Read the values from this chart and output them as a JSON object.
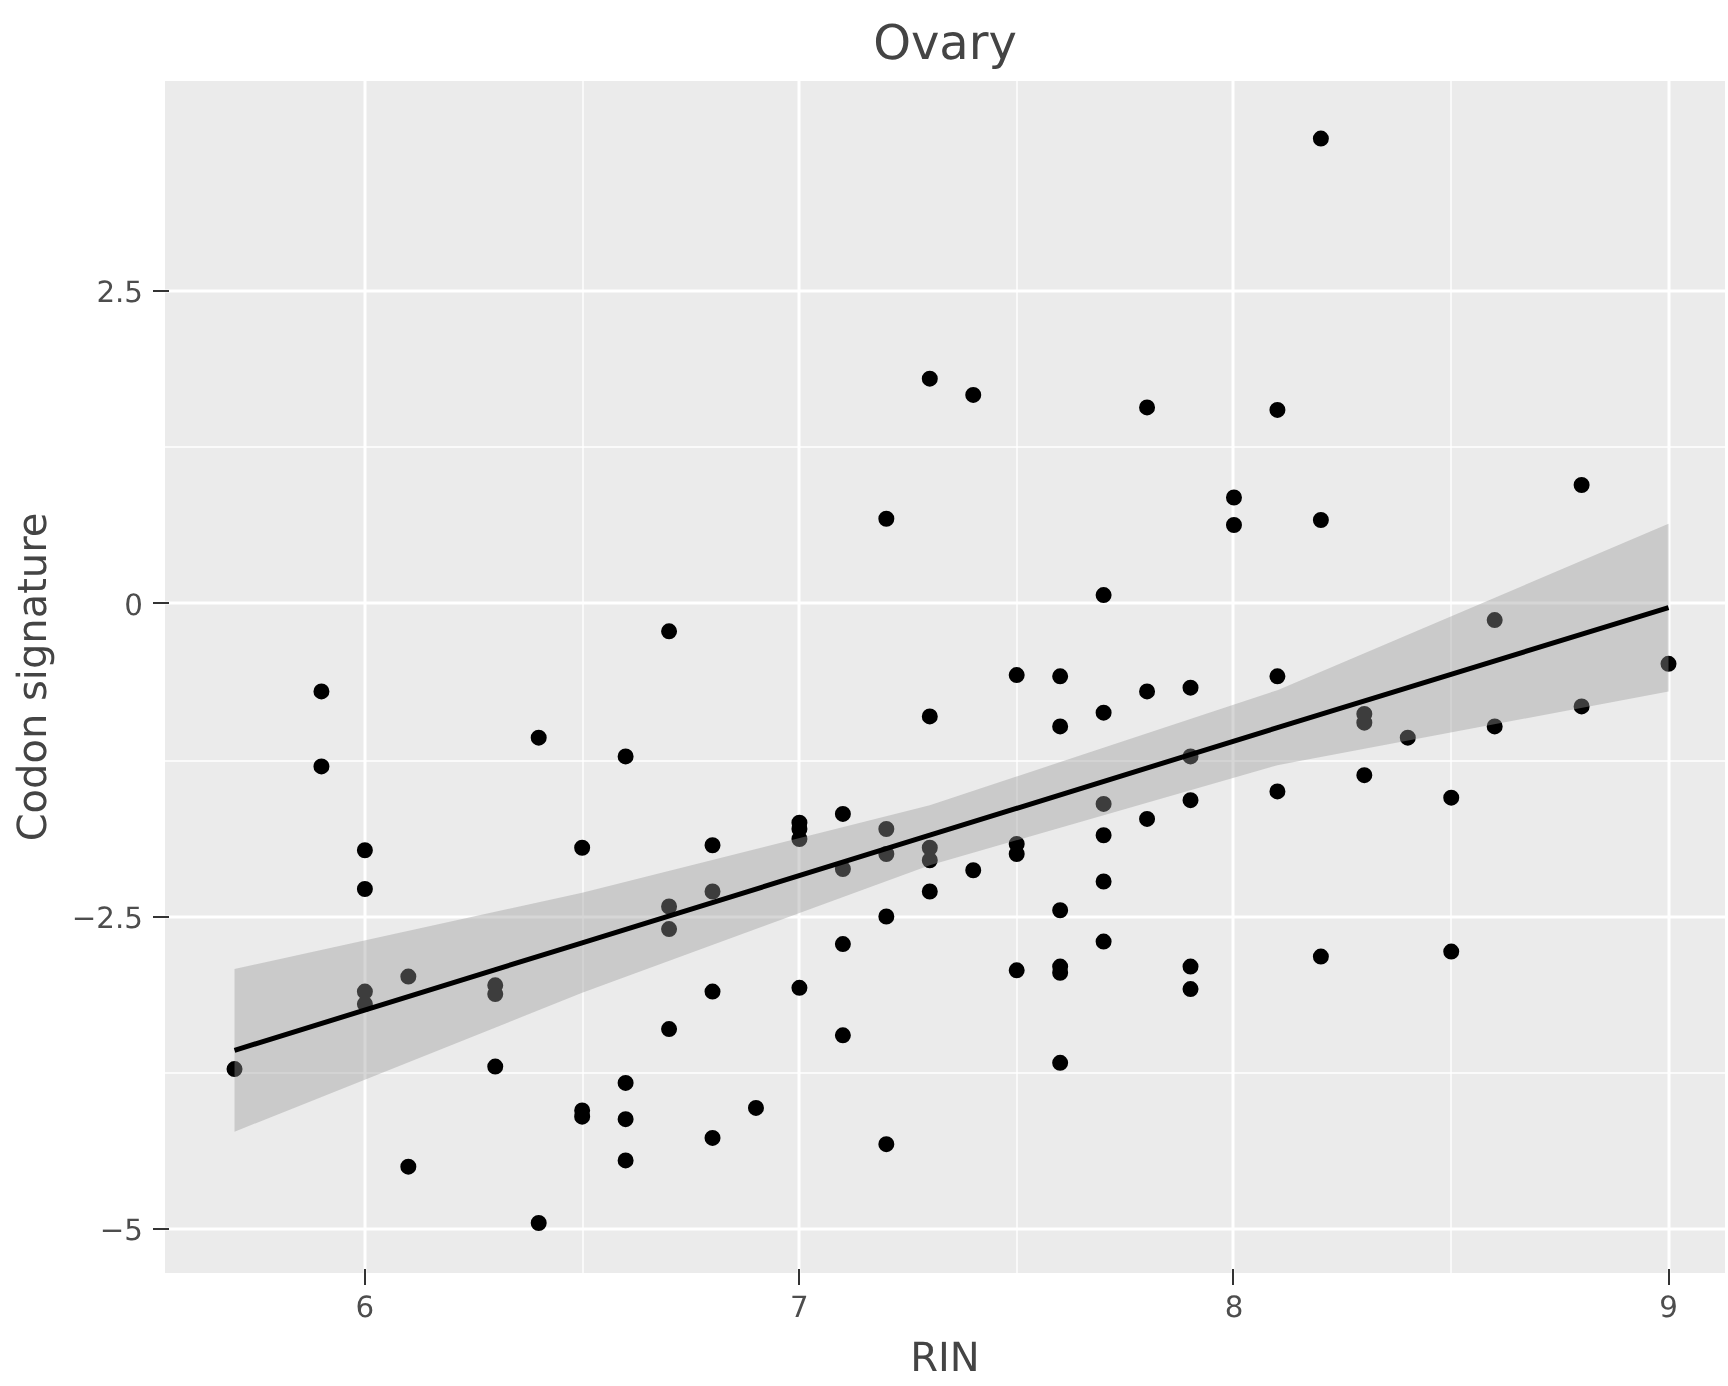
{
  "chart_data": {
    "type": "scatter",
    "title": "Ovary",
    "xlabel": "RIN",
    "ylabel": "Codon signature",
    "xlim": [
      5.54,
      9.13
    ],
    "ylim": [
      -5.35,
      4.18
    ],
    "xticks": [
      6,
      7,
      8,
      9
    ],
    "yticks": [
      {
        "value": -5,
        "label": "−5"
      },
      {
        "value": -2.5,
        "label": "−2.5"
      },
      0,
      2.5
    ],
    "grid": true,
    "series": [
      {
        "color": "#000000",
        "marker": "circle",
        "x": [
          5.7,
          5.9,
          5.9,
          6.0,
          6.0,
          6.0,
          6.0,
          6.1,
          6.1,
          6.3,
          6.3,
          6.3,
          6.4,
          6.4,
          6.5,
          6.5,
          6.5,
          6.6,
          6.6,
          6.6,
          6.6,
          6.7,
          6.7,
          6.7,
          6.7,
          6.8,
          6.8,
          6.8,
          6.8,
          6.9,
          7.0,
          7.0,
          7.0,
          7.0,
          7.1,
          7.1,
          7.1,
          7.1,
          7.2,
          7.2,
          7.2,
          7.2,
          7.2,
          7.3,
          7.3,
          7.3,
          7.3,
          7.3,
          7.4,
          7.4,
          7.5,
          7.5,
          7.5,
          7.5,
          7.6,
          7.6,
          7.6,
          7.6,
          7.6,
          7.6,
          7.7,
          7.7,
          7.7,
          7.7,
          7.7,
          7.7,
          7.8,
          7.8,
          7.8,
          7.9,
          7.9,
          7.9,
          7.9,
          7.9,
          8.0,
          8.0,
          8.1,
          8.1,
          8.1,
          8.2,
          8.2,
          8.2,
          8.3,
          8.3,
          8.3,
          8.4,
          8.5,
          8.5,
          8.6,
          8.6,
          8.8,
          8.8,
          9.0
        ],
        "values": [
          -3.72,
          -0.7,
          -1.3,
          -1.97,
          -2.28,
          -3.1,
          -3.2,
          -2.98,
          -4.5,
          -3.05,
          -3.12,
          -3.7,
          -1.07,
          -4.95,
          -1.95,
          -4.05,
          -4.1,
          -1.22,
          -3.83,
          -4.12,
          -4.45,
          -0.22,
          -2.42,
          -2.6,
          -3.4,
          -1.93,
          -2.3,
          -3.1,
          -4.27,
          -4.03,
          -1.75,
          -1.8,
          -1.88,
          -3.07,
          -1.68,
          -2.12,
          -2.72,
          -3.45,
          0.68,
          -1.8,
          -2.0,
          -2.5,
          -4.32,
          1.8,
          -0.9,
          -1.95,
          -2.05,
          -2.3,
          1.67,
          -2.13,
          -0.57,
          -1.92,
          -2.0,
          -2.93,
          -0.58,
          -0.98,
          -2.45,
          -2.9,
          -2.95,
          -3.67,
          0.07,
          -0.87,
          -1.6,
          -1.85,
          -2.22,
          -2.7,
          1.57,
          -0.7,
          -1.72,
          -0.67,
          -1.22,
          -1.57,
          -2.9,
          -3.08,
          0.85,
          0.63,
          1.55,
          -0.58,
          -1.5,
          3.72,
          0.67,
          -2.82,
          -0.88,
          -0.95,
          -1.37,
          -1.07,
          -1.55,
          -2.78,
          -0.13,
          -0.98,
          0.95,
          -0.82,
          -0.48
        ]
      },
      {
        "type": "line",
        "color": "#000000",
        "line_style": "solid",
        "marker": "none",
        "x": [
          5.7,
          6.5,
          7.3,
          8.1,
          9.0
        ],
        "values": [
          -3.57,
          -2.71,
          -1.85,
          -0.99,
          -0.03
        ],
        "lower": [
          -4.22,
          -3.11,
          -2.09,
          -1.29,
          -0.7
        ],
        "upper": [
          -2.92,
          -2.31,
          -1.61,
          -0.69,
          0.64
        ]
      }
    ]
  }
}
